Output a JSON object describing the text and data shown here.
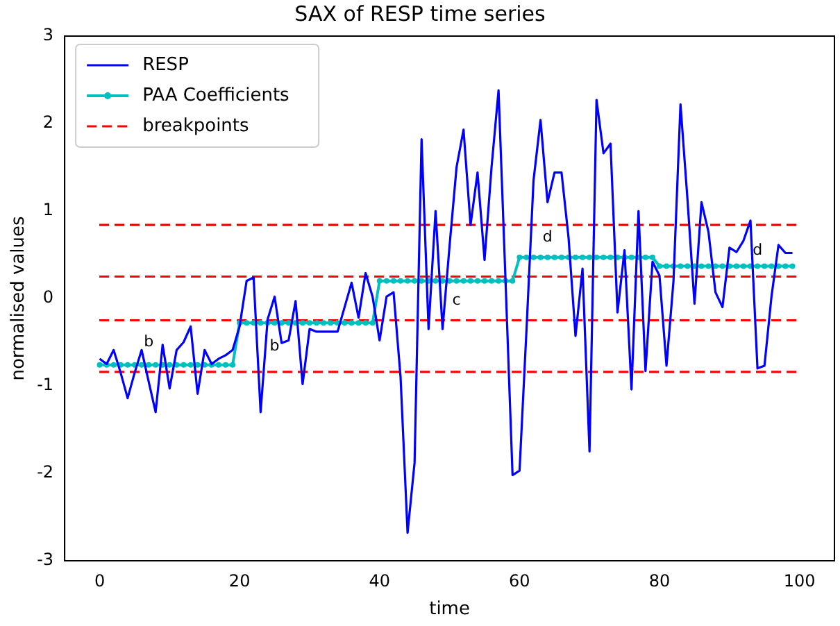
{
  "chart_data": {
    "type": "line",
    "title": "SAX of RESP time series",
    "xlabel": "time",
    "ylabel": "normalised values",
    "xlim": [
      -5,
      105
    ],
    "xticks": [
      0,
      20,
      40,
      60,
      80,
      100
    ],
    "ylim": [
      -3,
      3
    ],
    "yticks": [
      -3,
      -2,
      -1,
      0,
      1,
      2,
      3
    ],
    "grid": false,
    "legend": "top left",
    "series": [
      {
        "name": "RESP",
        "color": "#0000ff",
        "marker": "none",
        "x": [
          0,
          1,
          2,
          3,
          4,
          5,
          6,
          7,
          8,
          9,
          10,
          11,
          12,
          13,
          14,
          15,
          16,
          17,
          18,
          19,
          20,
          21,
          22,
          23,
          24,
          25,
          26,
          27,
          28,
          29,
          30,
          31,
          32,
          33,
          34,
          35,
          36,
          37,
          38,
          39,
          40,
          41,
          42,
          43,
          44,
          45,
          46,
          47,
          48,
          49,
          50,
          51,
          52,
          53,
          54,
          55,
          56,
          57,
          58,
          59,
          60,
          61,
          62,
          63,
          64,
          65,
          66,
          67,
          68,
          69,
          70,
          71,
          72,
          73,
          74,
          75,
          76,
          77,
          78,
          79,
          80,
          81,
          82,
          83,
          84,
          85,
          86,
          87,
          88,
          89,
          90,
          91,
          92,
          93,
          94,
          95,
          96,
          97,
          98,
          99
        ],
        "values": [
          -0.69,
          -0.75,
          -0.59,
          -0.85,
          -1.14,
          -0.85,
          -0.59,
          -0.95,
          -1.3,
          -0.53,
          -1.03,
          -0.59,
          -0.5,
          -0.32,
          -1.09,
          -0.59,
          -0.75,
          -0.69,
          -0.65,
          -0.59,
          -0.32,
          0.2,
          0.24,
          -1.3,
          -0.24,
          0.02,
          -0.51,
          -0.48,
          -0.03,
          -0.98,
          -0.35,
          -0.38,
          -0.38,
          -0.38,
          -0.38,
          -0.1,
          0.18,
          -0.22,
          0.29,
          0.02,
          -0.48,
          0.02,
          0.07,
          -0.9,
          -2.68,
          -1.88,
          1.82,
          -0.35,
          1.0,
          -0.35,
          0.6,
          1.5,
          1.93,
          0.84,
          1.44,
          0.44,
          1.5,
          2.38,
          0.2,
          -2.02,
          -1.97,
          -0.35,
          1.35,
          2.04,
          1.1,
          1.44,
          1.44,
          0.7,
          -0.43,
          0.34,
          -1.75,
          2.27,
          1.66,
          1.77,
          -0.16,
          0.55,
          -1.04,
          1.0,
          -0.83,
          0.42,
          0.26,
          -0.77,
          0.2,
          2.22,
          1.13,
          -0.06,
          1.1,
          0.76,
          0.07,
          -0.1,
          0.58,
          0.53,
          0.66,
          0.89,
          -0.8,
          -0.77,
          0.02,
          0.61,
          0.52,
          0.52
        ]
      },
      {
        "name": "PAA Coefficients",
        "color": "#00bfbf",
        "marker": "circle",
        "x": [
          0,
          1,
          2,
          3,
          4,
          5,
          6,
          7,
          8,
          9,
          10,
          11,
          12,
          13,
          14,
          15,
          16,
          17,
          18,
          19,
          20,
          21,
          22,
          23,
          24,
          25,
          26,
          27,
          28,
          29,
          30,
          31,
          32,
          33,
          34,
          35,
          36,
          37,
          38,
          39,
          40,
          41,
          42,
          43,
          44,
          45,
          46,
          47,
          48,
          49,
          50,
          51,
          52,
          53,
          54,
          55,
          56,
          57,
          58,
          59,
          60,
          61,
          62,
          63,
          64,
          65,
          66,
          67,
          68,
          69,
          70,
          71,
          72,
          73,
          74,
          75,
          76,
          77,
          78,
          79,
          80,
          81,
          82,
          83,
          84,
          85,
          86,
          87,
          88,
          89,
          90,
          91,
          92,
          93,
          94,
          95,
          96,
          97,
          98,
          99
        ],
        "values": [
          -0.76,
          -0.76,
          -0.76,
          -0.76,
          -0.76,
          -0.76,
          -0.76,
          -0.76,
          -0.76,
          -0.76,
          -0.76,
          -0.76,
          -0.76,
          -0.76,
          -0.76,
          -0.76,
          -0.76,
          -0.76,
          -0.76,
          -0.76,
          -0.28,
          -0.28,
          -0.28,
          -0.28,
          -0.28,
          -0.28,
          -0.28,
          -0.28,
          -0.28,
          -0.28,
          -0.28,
          -0.28,
          -0.28,
          -0.28,
          -0.28,
          -0.28,
          -0.28,
          -0.28,
          -0.28,
          -0.28,
          0.2,
          0.2,
          0.2,
          0.2,
          0.2,
          0.2,
          0.2,
          0.2,
          0.2,
          0.2,
          0.2,
          0.2,
          0.2,
          0.2,
          0.2,
          0.2,
          0.2,
          0.2,
          0.2,
          0.2,
          0.47,
          0.47,
          0.47,
          0.47,
          0.47,
          0.47,
          0.47,
          0.47,
          0.47,
          0.47,
          0.47,
          0.47,
          0.47,
          0.47,
          0.47,
          0.47,
          0.47,
          0.47,
          0.47,
          0.47,
          0.37,
          0.37,
          0.37,
          0.37,
          0.37,
          0.37,
          0.37,
          0.37,
          0.37,
          0.37,
          0.37,
          0.37,
          0.37,
          0.37,
          0.37,
          0.37,
          0.37,
          0.37,
          0.37,
          0.37
        ]
      }
    ],
    "ref_lines": [
      {
        "axis": "y",
        "value": 0.84,
        "label": "breakpoints",
        "color": "#ff0000",
        "line_style": "dashed"
      },
      {
        "axis": "y",
        "value": 0.25,
        "color": "#ff0000",
        "line_style": "dashed"
      },
      {
        "axis": "y",
        "value": -0.25,
        "color": "#ff0000",
        "line_style": "dashed"
      },
      {
        "axis": "y",
        "value": -0.84,
        "color": "#ff0000",
        "line_style": "dashed"
      }
    ],
    "annotations": [
      "b",
      "b",
      "c",
      "d",
      "d"
    ]
  }
}
